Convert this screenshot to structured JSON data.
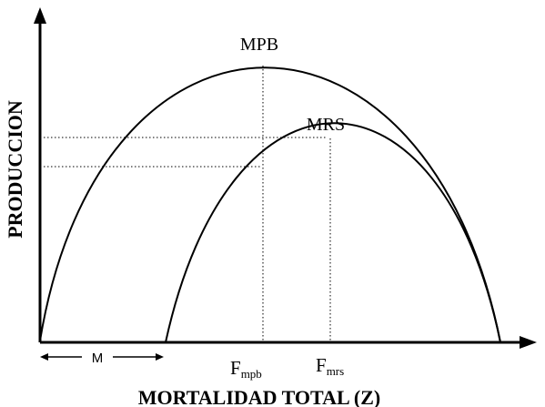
{
  "diagram": {
    "y_axis_label": "PRODUCCION",
    "x_axis_label": "MORTALIDAD TOTAL (Z)",
    "curves": [
      {
        "name": "MPB"
      },
      {
        "name": "MRS"
      }
    ],
    "range_label": "M",
    "x_markers": [
      {
        "base": "F",
        "sub": "mpb"
      },
      {
        "base": "F",
        "sub": "mrs"
      }
    ],
    "colors": {
      "line": "#000000",
      "background": "#ffffff"
    }
  }
}
